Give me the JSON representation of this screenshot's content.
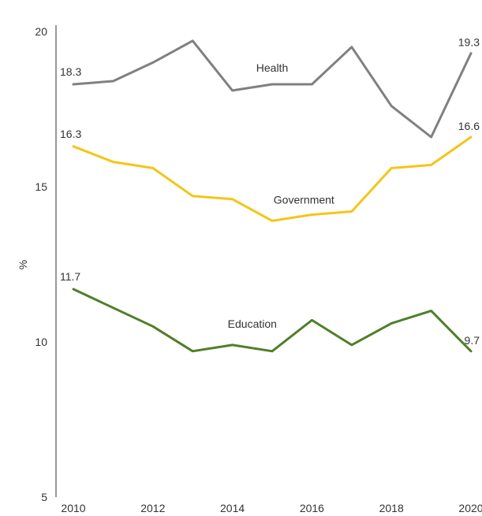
{
  "chart_data": {
    "type": "line",
    "title": "",
    "xlabel": "",
    "ylabel": "%",
    "x": [
      2010,
      2011,
      2012,
      2013,
      2014,
      2015,
      2016,
      2017,
      2018,
      2019,
      2020
    ],
    "xticks": [
      "2010",
      "2012",
      "2014",
      "2016",
      "2018",
      "2020"
    ],
    "yticks": [
      "5",
      "10",
      "15",
      "20"
    ],
    "xlim": [
      2010,
      2020
    ],
    "ylim": [
      5,
      20
    ],
    "grid": false,
    "legend": "none",
    "series": [
      {
        "name": "Health",
        "color": "#808080",
        "values": [
          18.3,
          18.4,
          19.0,
          19.7,
          18.1,
          18.3,
          18.3,
          19.5,
          17.6,
          16.6,
          19.3
        ],
        "start_label": "18.3",
        "end_label": "19.3"
      },
      {
        "name": "Government",
        "color": "#F5C518",
        "values": [
          16.3,
          15.8,
          15.6,
          14.7,
          14.6,
          13.9,
          14.1,
          14.2,
          15.6,
          15.7,
          16.6
        ],
        "start_label": "16.3",
        "end_label": "16.6"
      },
      {
        "name": "Education",
        "color": "#4F7F2A",
        "values": [
          11.7,
          11.1,
          10.5,
          9.7,
          9.9,
          9.7,
          10.7,
          9.9,
          10.6,
          11.0,
          9.7
        ],
        "start_label": "11.7",
        "end_label": "9.7"
      }
    ]
  }
}
